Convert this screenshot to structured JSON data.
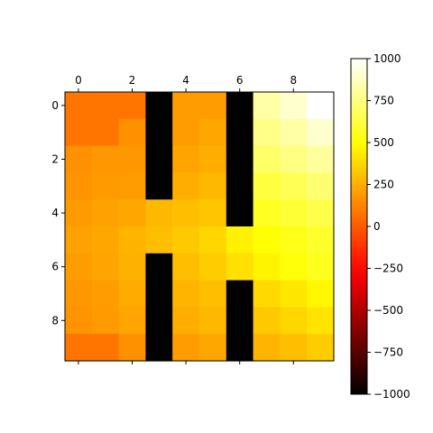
{
  "chart_data": {
    "type": "heatmap",
    "title": "",
    "xlabel": "",
    "ylabel": "",
    "rows": 10,
    "cols": 10,
    "x_ticks": [
      "0",
      "2",
      "4",
      "6",
      "8"
    ],
    "y_ticks": [
      "0",
      "2",
      "4",
      "6",
      "8"
    ],
    "x_axis_position": "top",
    "colormap": "hot",
    "vmin": -1000,
    "vmax": 1000,
    "colorbar": {
      "ticks": [
        1000,
        750,
        500,
        250,
        0,
        -250,
        -500,
        -750,
        -1000
      ],
      "tick_labels": [
        "1000",
        "750",
        "500",
        "250",
        "0",
        "−250",
        "−500",
        "−750",
        "−1000"
      ]
    },
    "values": [
      [
        80,
        80,
        80,
        -1000,
        200,
        200,
        -1000,
        820,
        900,
        1000
      ],
      [
        80,
        80,
        160,
        -1000,
        200,
        230,
        -1000,
        760,
        820,
        900
      ],
      [
        160,
        180,
        180,
        -1000,
        220,
        250,
        -1000,
        700,
        750,
        800
      ],
      [
        170,
        190,
        200,
        -1000,
        250,
        280,
        -1000,
        620,
        660,
        720
      ],
      [
        190,
        210,
        230,
        280,
        300,
        320,
        -1000,
        560,
        600,
        640
      ],
      [
        210,
        230,
        270,
        300,
        330,
        370,
        450,
        500,
        540,
        580
      ],
      [
        200,
        220,
        260,
        -1000,
        300,
        340,
        400,
        460,
        510,
        550
      ],
      [
        180,
        200,
        240,
        -1000,
        270,
        300,
        -1000,
        380,
        420,
        470
      ],
      [
        170,
        190,
        220,
        -1000,
        250,
        280,
        -1000,
        330,
        370,
        410
      ],
      [
        80,
        80,
        160,
        -1000,
        200,
        230,
        -1000,
        270,
        300,
        340
      ]
    ]
  }
}
